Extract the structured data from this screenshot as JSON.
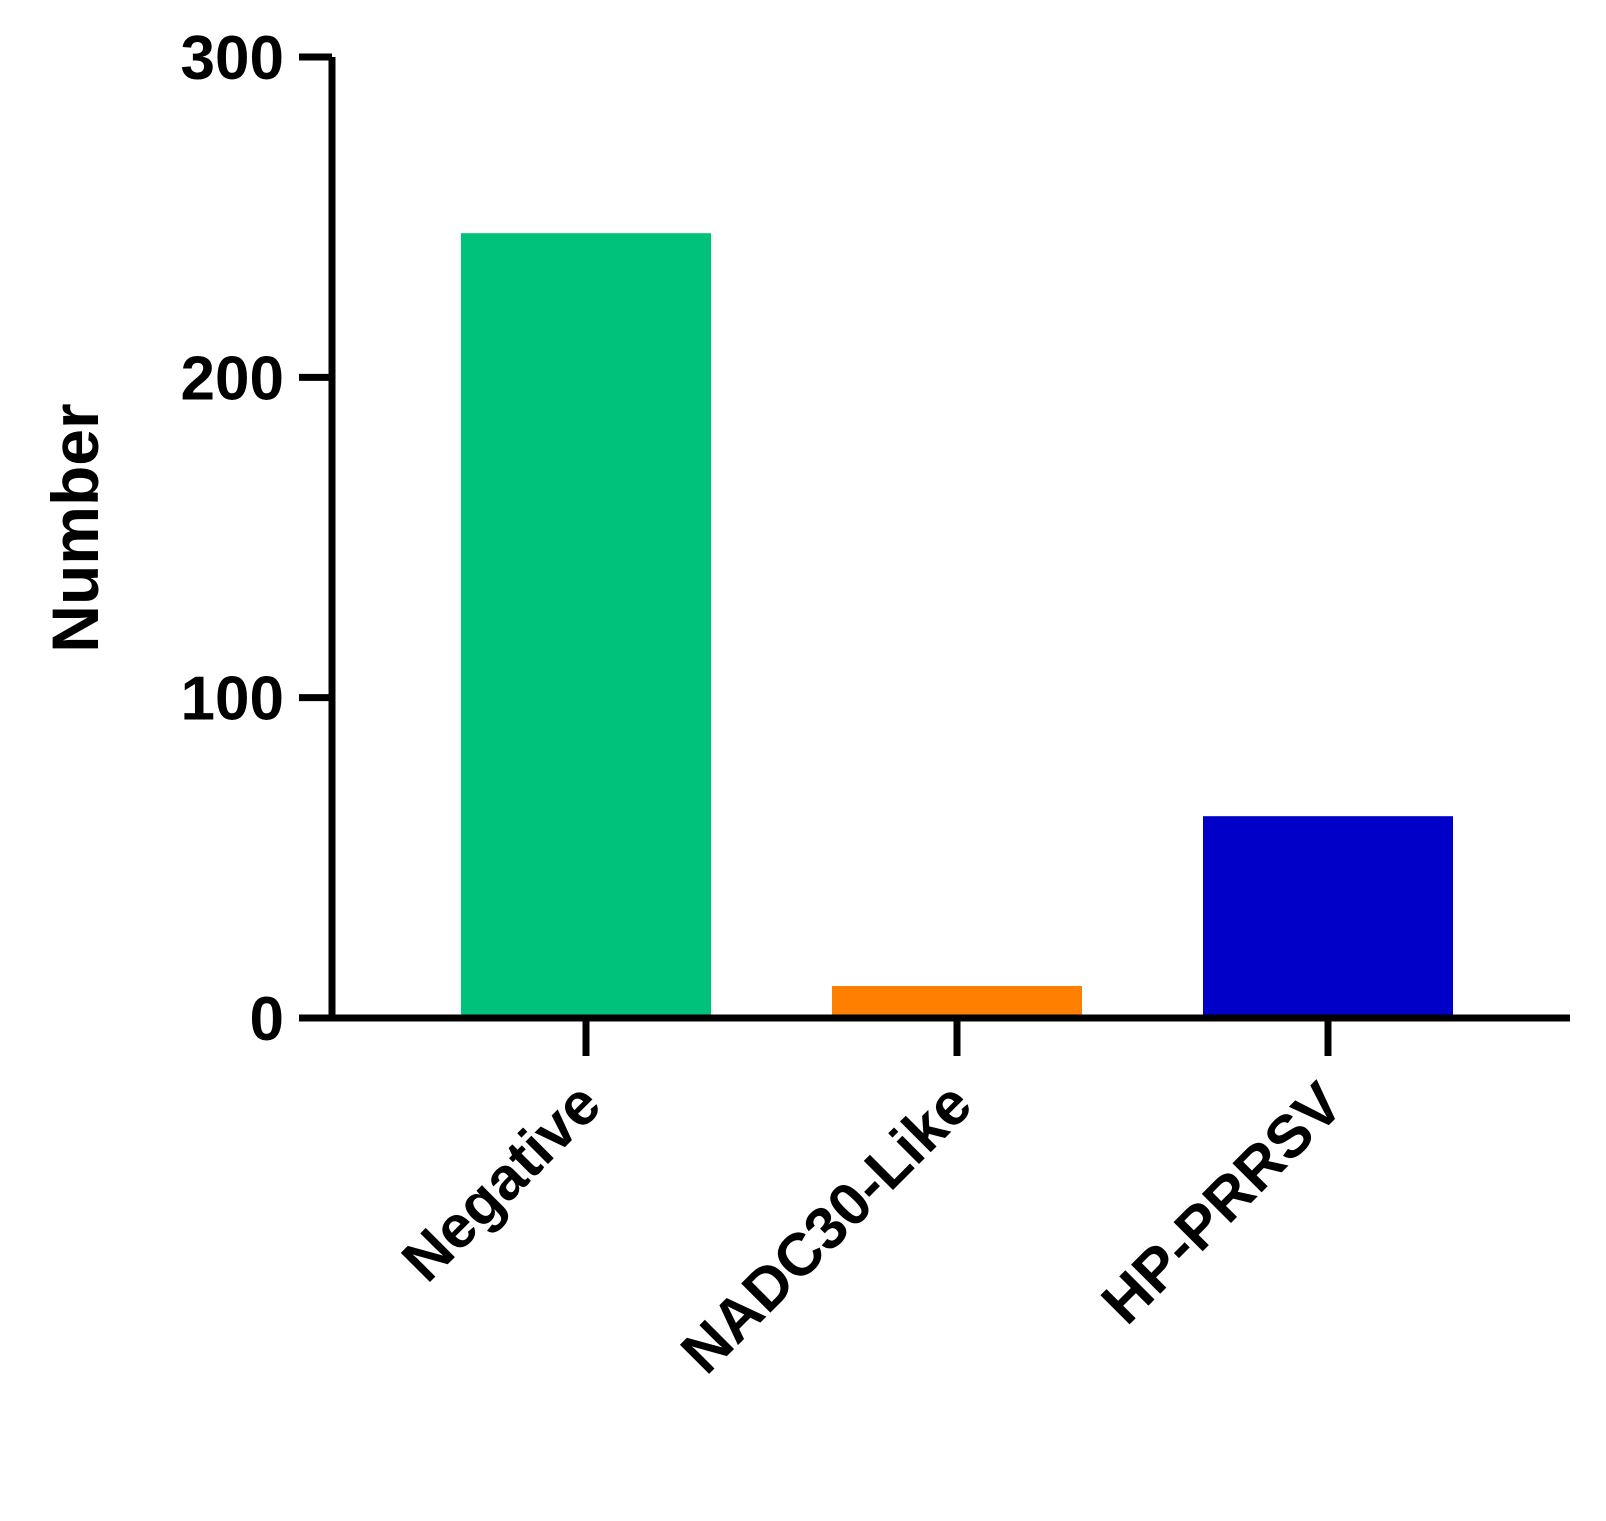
{
  "chart_data": {
    "type": "bar",
    "title": "",
    "xlabel": "",
    "ylabel": "Number",
    "ylim": [
      0,
      300
    ],
    "yticks": [
      0,
      100,
      200,
      300
    ],
    "categories": [
      "Negative",
      "NADC30-Like",
      "HP-PRRSV"
    ],
    "values": [
      245,
      10,
      63
    ],
    "colors": [
      "#00C27A",
      "#FF8000",
      "#0000C8"
    ],
    "grid": false,
    "legend": "none"
  }
}
